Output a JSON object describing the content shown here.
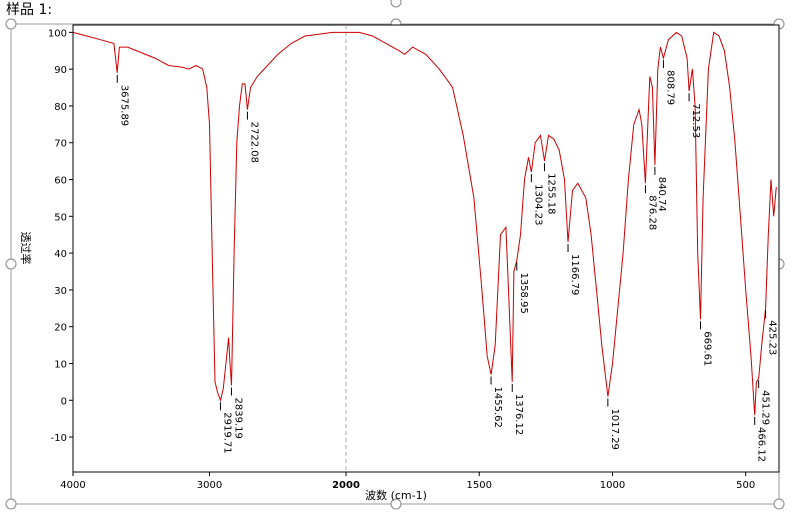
{
  "chart_data": {
    "type": "line",
    "title": "样品 1:",
    "xlabel": "波数 (cm-1)",
    "ylabel": "透过率",
    "color": "#cc0000",
    "scale_break": 2000,
    "xlim": [
      4000,
      375
    ],
    "ylim": [
      -19.5,
      102
    ],
    "xticks": [
      4000,
      3000,
      2000,
      1500,
      1000,
      500
    ],
    "yticks": [
      -10,
      0,
      10,
      20,
      30,
      40,
      50,
      60,
      70,
      80,
      90,
      100
    ],
    "x": [
      4000,
      3900,
      3800,
      3700,
      3675.89,
      3660,
      3600,
      3500,
      3400,
      3300,
      3200,
      3150,
      3100,
      3050,
      3020,
      3000,
      2980,
      2960,
      2940,
      2919.71,
      2900,
      2880,
      2860,
      2850,
      2839.19,
      2820,
      2800,
      2780,
      2760,
      2740,
      2722.08,
      2700,
      2650,
      2600,
      2500,
      2400,
      2300,
      2200,
      2100,
      2000,
      1950,
      1900,
      1850,
      1800,
      1780,
      1750,
      1700,
      1650,
      1600,
      1560,
      1520,
      1490,
      1470,
      1455.62,
      1440,
      1420,
      1400,
      1390,
      1376.12,
      1370,
      1358.95,
      1345,
      1330,
      1315,
      1304.23,
      1290,
      1270,
      1255.18,
      1240,
      1220,
      1200,
      1180,
      1166.79,
      1150,
      1130,
      1100,
      1080,
      1060,
      1040,
      1017.29,
      1000,
      980,
      960,
      940,
      920,
      900,
      890,
      876.28,
      860,
      850,
      840.74,
      830,
      820,
      808.79,
      790,
      760,
      740,
      720,
      712.53,
      700,
      690,
      680,
      669.61,
      660,
      640,
      620,
      600,
      580,
      560,
      540,
      520,
      500,
      480,
      466.12,
      460,
      451.29,
      440,
      425.23,
      415,
      405,
      395,
      385
    ],
    "values": [
      100,
      99,
      98,
      97,
      89,
      96,
      96,
      94.5,
      93,
      91,
      90.5,
      90,
      91,
      90,
      85,
      75,
      40,
      5,
      2,
      0,
      3,
      10,
      17,
      10,
      4,
      40,
      70,
      80,
      86,
      86,
      79,
      85,
      88,
      90,
      94,
      97,
      99,
      99.5,
      100,
      100,
      100,
      99,
      97,
      95,
      94,
      96,
      94,
      90,
      85,
      72,
      55,
      30,
      12,
      7,
      15,
      45,
      47,
      30,
      5,
      35,
      38,
      45,
      60,
      66,
      62,
      70,
      72,
      65,
      72,
      71,
      68,
      60,
      43,
      57,
      59,
      55,
      45,
      30,
      15,
      1,
      10,
      25,
      40,
      60,
      75,
      79,
      75,
      59,
      88,
      85,
      64,
      90,
      96,
      93,
      98,
      100,
      99,
      93,
      84,
      90,
      80,
      40,
      22,
      55,
      90,
      100,
      99,
      95,
      85,
      70,
      50,
      30,
      12,
      -4,
      5,
      6,
      15,
      25,
      45,
      60,
      50,
      58
    ],
    "peaks": [
      3675.89,
      2919.71,
      2839.19,
      2722.08,
      1455.62,
      1376.12,
      1358.95,
      1304.23,
      1255.18,
      1166.79,
      1017.29,
      876.28,
      840.74,
      808.79,
      712.53,
      669.61,
      466.12,
      451.29,
      425.23
    ]
  }
}
